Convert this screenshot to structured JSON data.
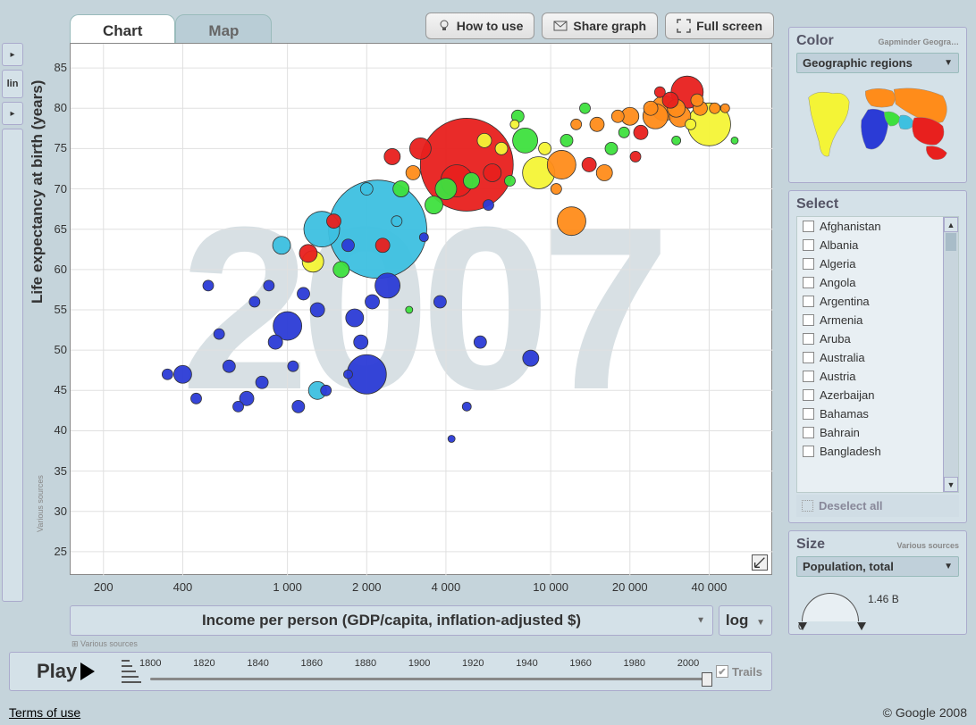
{
  "tabs": {
    "chart": "Chart",
    "map": "Map"
  },
  "top_buttons": {
    "howto": "How to use",
    "share": "Share graph",
    "full": "Full screen"
  },
  "left": {
    "lin": "lin"
  },
  "chart": {
    "type": "bubble",
    "year_watermark": "2007",
    "y_label": "Life expectancy at birth (years)",
    "x_label": "Income per person (GDP/capita, inflation-adjusted $)",
    "x_scale": "log",
    "y_scale": "lin",
    "ylim": [
      22,
      88
    ],
    "yticks": [
      25,
      30,
      35,
      40,
      45,
      50,
      55,
      60,
      65,
      70,
      75,
      80,
      85
    ],
    "xlim_log": [
      150,
      70000
    ],
    "xticks": [
      200,
      400,
      1000,
      2000,
      4000,
      10000,
      20000,
      40000
    ],
    "xtick_labels": [
      "200",
      "400",
      "1 000",
      "2 000",
      "4 000",
      "10 000",
      "20 000",
      "40 000"
    ],
    "grid_color": "#e0e0e0",
    "bg_color": "#ffffff",
    "colors": {
      "blue": "#2b3bd6",
      "cyan": "#3dc0e0",
      "green": "#3ee03e",
      "yellow": "#f4f436",
      "orange": "#ff8c1a",
      "red": "#e8201e"
    },
    "bubbles": [
      {
        "x": 2200,
        "y": 65,
        "r": 55,
        "c": "cyan"
      },
      {
        "x": 4800,
        "y": 73,
        "r": 52,
        "c": "red"
      },
      {
        "x": 2000,
        "y": 47,
        "r": 22,
        "c": "blue"
      },
      {
        "x": 1350,
        "y": 65,
        "r": 20,
        "c": "cyan"
      },
      {
        "x": 40000,
        "y": 78,
        "r": 24,
        "c": "yellow"
      },
      {
        "x": 30000,
        "y": 80,
        "r": 10,
        "c": "orange"
      },
      {
        "x": 33000,
        "y": 82,
        "r": 18,
        "c": "red"
      },
      {
        "x": 27000,
        "y": 80,
        "r": 14,
        "c": "orange"
      },
      {
        "x": 24000,
        "y": 80,
        "r": 8,
        "c": "orange"
      },
      {
        "x": 20000,
        "y": 79,
        "r": 10,
        "c": "orange"
      },
      {
        "x": 18000,
        "y": 79,
        "r": 7,
        "c": "orange"
      },
      {
        "x": 15000,
        "y": 78,
        "r": 8,
        "c": "orange"
      },
      {
        "x": 11000,
        "y": 73,
        "r": 16,
        "c": "orange"
      },
      {
        "x": 12000,
        "y": 66,
        "r": 16,
        "c": "orange"
      },
      {
        "x": 9000,
        "y": 72,
        "r": 18,
        "c": "yellow"
      },
      {
        "x": 8000,
        "y": 76,
        "r": 14,
        "c": "green"
      },
      {
        "x": 7500,
        "y": 79,
        "r": 7,
        "c": "green"
      },
      {
        "x": 6000,
        "y": 72,
        "r": 10,
        "c": "red"
      },
      {
        "x": 5600,
        "y": 76,
        "r": 8,
        "c": "yellow"
      },
      {
        "x": 5000,
        "y": 71,
        "r": 9,
        "c": "green"
      },
      {
        "x": 4400,
        "y": 71,
        "r": 18,
        "c": "red"
      },
      {
        "x": 4000,
        "y": 70,
        "r": 12,
        "c": "green"
      },
      {
        "x": 3600,
        "y": 68,
        "r": 10,
        "c": "green"
      },
      {
        "x": 3200,
        "y": 75,
        "r": 12,
        "c": "red"
      },
      {
        "x": 3000,
        "y": 72,
        "r": 8,
        "c": "orange"
      },
      {
        "x": 2700,
        "y": 70,
        "r": 9,
        "c": "green"
      },
      {
        "x": 2500,
        "y": 74,
        "r": 9,
        "c": "red"
      },
      {
        "x": 2400,
        "y": 58,
        "r": 14,
        "c": "blue"
      },
      {
        "x": 2300,
        "y": 63,
        "r": 8,
        "c": "red"
      },
      {
        "x": 2100,
        "y": 56,
        "r": 8,
        "c": "blue"
      },
      {
        "x": 1900,
        "y": 51,
        "r": 8,
        "c": "blue"
      },
      {
        "x": 1800,
        "y": 54,
        "r": 10,
        "c": "blue"
      },
      {
        "x": 1700,
        "y": 63,
        "r": 7,
        "c": "blue"
      },
      {
        "x": 1600,
        "y": 60,
        "r": 9,
        "c": "green"
      },
      {
        "x": 1500,
        "y": 66,
        "r": 8,
        "c": "red"
      },
      {
        "x": 1400,
        "y": 45,
        "r": 6,
        "c": "blue"
      },
      {
        "x": 1300,
        "y": 55,
        "r": 8,
        "c": "blue"
      },
      {
        "x": 1200,
        "y": 62,
        "r": 10,
        "c": "red"
      },
      {
        "x": 1150,
        "y": 57,
        "r": 7,
        "c": "blue"
      },
      {
        "x": 1100,
        "y": 43,
        "r": 7,
        "c": "blue"
      },
      {
        "x": 1050,
        "y": 48,
        "r": 6,
        "c": "blue"
      },
      {
        "x": 1000,
        "y": 53,
        "r": 16,
        "c": "blue"
      },
      {
        "x": 950,
        "y": 63,
        "r": 10,
        "c": "cyan"
      },
      {
        "x": 900,
        "y": 51,
        "r": 8,
        "c": "blue"
      },
      {
        "x": 850,
        "y": 58,
        "r": 6,
        "c": "blue"
      },
      {
        "x": 800,
        "y": 46,
        "r": 7,
        "c": "blue"
      },
      {
        "x": 750,
        "y": 56,
        "r": 6,
        "c": "blue"
      },
      {
        "x": 700,
        "y": 44,
        "r": 8,
        "c": "blue"
      },
      {
        "x": 650,
        "y": 43,
        "r": 6,
        "c": "blue"
      },
      {
        "x": 600,
        "y": 48,
        "r": 7,
        "c": "blue"
      },
      {
        "x": 550,
        "y": 52,
        "r": 6,
        "c": "blue"
      },
      {
        "x": 500,
        "y": 58,
        "r": 6,
        "c": "blue"
      },
      {
        "x": 450,
        "y": 44,
        "r": 6,
        "c": "blue"
      },
      {
        "x": 400,
        "y": 47,
        "r": 10,
        "c": "blue"
      },
      {
        "x": 350,
        "y": 47,
        "r": 6,
        "c": "blue"
      },
      {
        "x": 1300,
        "y": 45,
        "r": 10,
        "c": "cyan"
      },
      {
        "x": 3800,
        "y": 56,
        "r": 7,
        "c": "blue"
      },
      {
        "x": 4800,
        "y": 43,
        "r": 5,
        "c": "blue"
      },
      {
        "x": 4200,
        "y": 39,
        "r": 4,
        "c": "blue"
      },
      {
        "x": 5400,
        "y": 51,
        "r": 7,
        "c": "blue"
      },
      {
        "x": 8400,
        "y": 49,
        "r": 9,
        "c": "blue"
      },
      {
        "x": 2600,
        "y": 66,
        "r": 6,
        "c": "cyan"
      },
      {
        "x": 7000,
        "y": 71,
        "r": 6,
        "c": "green"
      },
      {
        "x": 11500,
        "y": 76,
        "r": 7,
        "c": "green"
      },
      {
        "x": 14000,
        "y": 73,
        "r": 8,
        "c": "red"
      },
      {
        "x": 12500,
        "y": 78,
        "r": 6,
        "c": "orange"
      },
      {
        "x": 9500,
        "y": 75,
        "r": 7,
        "c": "yellow"
      },
      {
        "x": 6500,
        "y": 75,
        "r": 7,
        "c": "yellow"
      },
      {
        "x": 17000,
        "y": 75,
        "r": 7,
        "c": "green"
      },
      {
        "x": 22000,
        "y": 77,
        "r": 8,
        "c": "red"
      },
      {
        "x": 26000,
        "y": 82,
        "r": 6,
        "c": "red"
      },
      {
        "x": 36000,
        "y": 81,
        "r": 7,
        "c": "orange"
      },
      {
        "x": 34000,
        "y": 78,
        "r": 6,
        "c": "yellow"
      },
      {
        "x": 30000,
        "y": 76,
        "r": 5,
        "c": "green"
      },
      {
        "x": 42000,
        "y": 80,
        "r": 6,
        "c": "orange"
      },
      {
        "x": 46000,
        "y": 80,
        "r": 5,
        "c": "orange"
      },
      {
        "x": 50000,
        "y": 76,
        "r": 4,
        "c": "green"
      },
      {
        "x": 3300,
        "y": 64,
        "r": 5,
        "c": "blue"
      },
      {
        "x": 2000,
        "y": 70,
        "r": 7,
        "c": "cyan"
      },
      {
        "x": 1250,
        "y": 61,
        "r": 12,
        "c": "yellow"
      },
      {
        "x": 5800,
        "y": 68,
        "r": 6,
        "c": "blue"
      },
      {
        "x": 10500,
        "y": 70,
        "r": 6,
        "c": "orange"
      },
      {
        "x": 7300,
        "y": 78,
        "r": 5,
        "c": "yellow"
      },
      {
        "x": 13500,
        "y": 80,
        "r": 6,
        "c": "green"
      },
      {
        "x": 16000,
        "y": 72,
        "r": 9,
        "c": "orange"
      },
      {
        "x": 19000,
        "y": 77,
        "r": 6,
        "c": "green"
      },
      {
        "x": 21000,
        "y": 74,
        "r": 6,
        "c": "red"
      },
      {
        "x": 25000,
        "y": 79,
        "r": 14,
        "c": "orange"
      },
      {
        "x": 28500,
        "y": 81,
        "r": 9,
        "c": "red"
      },
      {
        "x": 31000,
        "y": 79,
        "r": 12,
        "c": "orange"
      },
      {
        "x": 37000,
        "y": 80,
        "r": 8,
        "c": "orange"
      },
      {
        "x": 2900,
        "y": 55,
        "r": 4,
        "c": "green"
      },
      {
        "x": 1700,
        "y": 47,
        "r": 5,
        "c": "blue"
      }
    ],
    "sources_label": "Various sources"
  },
  "timeline": {
    "play_label": "Play",
    "start": 1800,
    "end": 2007,
    "step": 20,
    "ticks": [
      1800,
      1820,
      1840,
      1860,
      1880,
      1900,
      1920,
      1940,
      1960,
      1980,
      2000
    ],
    "value": 2007,
    "trails_label": "Trails",
    "trails_checked": true
  },
  "color_panel": {
    "title": "Color",
    "subtitle": "Gapminder Geogra…",
    "dropdown": "Geographic regions",
    "region_colors": {
      "americas": "#f4f436",
      "europe": "#ff8c1a",
      "africa": "#2b3bd6",
      "asia_east": "#e8201e",
      "asia_south": "#3dc0e0",
      "mena": "#3ee03e"
    }
  },
  "select_panel": {
    "title": "Select",
    "countries": [
      "Afghanistan",
      "Albania",
      "Algeria",
      "Angola",
      "Argentina",
      "Armenia",
      "Aruba",
      "Australia",
      "Austria",
      "Azerbaijan",
      "Bahamas",
      "Bahrain",
      "Bangladesh"
    ],
    "deselect_label": "Deselect all"
  },
  "size_panel": {
    "title": "Size",
    "subtitle": "Various sources",
    "dropdown": "Population, total",
    "max_label": "1.46 B",
    "zero_label": "0"
  },
  "footer": {
    "terms": "Terms of use",
    "copyright": "© Google 2008"
  }
}
